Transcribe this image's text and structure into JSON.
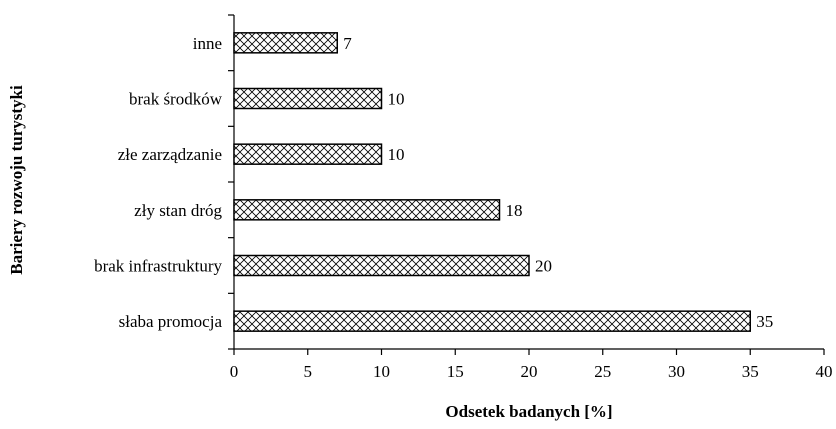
{
  "chart_data": {
    "type": "bar",
    "orientation": "horizontal",
    "categories": [
      "inne",
      "brak środków",
      "złe zarządzanie",
      "zły stan dróg",
      "brak infrastruktury",
      "słaba promocja"
    ],
    "values": [
      7,
      10,
      10,
      18,
      20,
      35
    ],
    "xlabel": "Odsetek badanych [%]",
    "ylabel": "Bariery rozwoju turystyki",
    "xlim": [
      0,
      40
    ],
    "xticks": [
      0,
      5,
      10,
      15,
      20,
      25,
      30,
      35,
      40
    ],
    "grid": false,
    "legend": "none",
    "bar_fill": "crosshatch",
    "colors": {
      "bar_stroke": "#000000",
      "hatch": "#000000",
      "background": "#ffffff"
    }
  }
}
